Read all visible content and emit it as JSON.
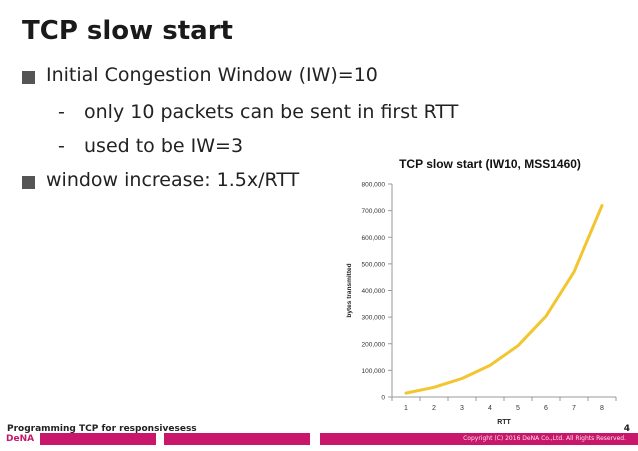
{
  "slide": {
    "title": "TCP slow start",
    "bullets": [
      {
        "text": "Initial Congestion Window (IW)=10"
      },
      {
        "text": "only 10 packets can be sent in first RTT"
      },
      {
        "text": "used to be IW=3"
      },
      {
        "text": "window increase: 1.5x/RTT"
      }
    ],
    "dash_glyph": "-",
    "bullet_icon": "square-bullet-icon"
  },
  "chart_data": {
    "type": "line",
    "title": "TCP slow start (IW10, MSS1460)",
    "xlabel": "RTT",
    "ylabel": "bytes transmitted",
    "categories": [
      "1",
      "2",
      "3",
      "4",
      "5",
      "6",
      "7",
      "8"
    ],
    "series": [
      {
        "values": [
          14600,
          36500,
          69350,
          118625,
          192538,
          303406,
          469709,
          719163
        ],
        "color": "#f2c531"
      }
    ],
    "ylim": [
      0,
      800000
    ],
    "yticks": [
      "0",
      "100,000",
      "200,000",
      "300,000",
      "400,000",
      "500,000",
      "600,000",
      "700,000",
      "800,000"
    ],
    "grid": false
  },
  "footer": {
    "left_text": "Programming TCP for responsivesess",
    "page_number": "4",
    "logo_text": "DeNA",
    "copyright": "Copyright (C) 2016 DeNA Co.,Ltd. All Rights Reserved.",
    "colors": [
      "#c8176a",
      "#ffffff",
      "#c8176a",
      "#ffffff",
      "#c8176a"
    ]
  }
}
